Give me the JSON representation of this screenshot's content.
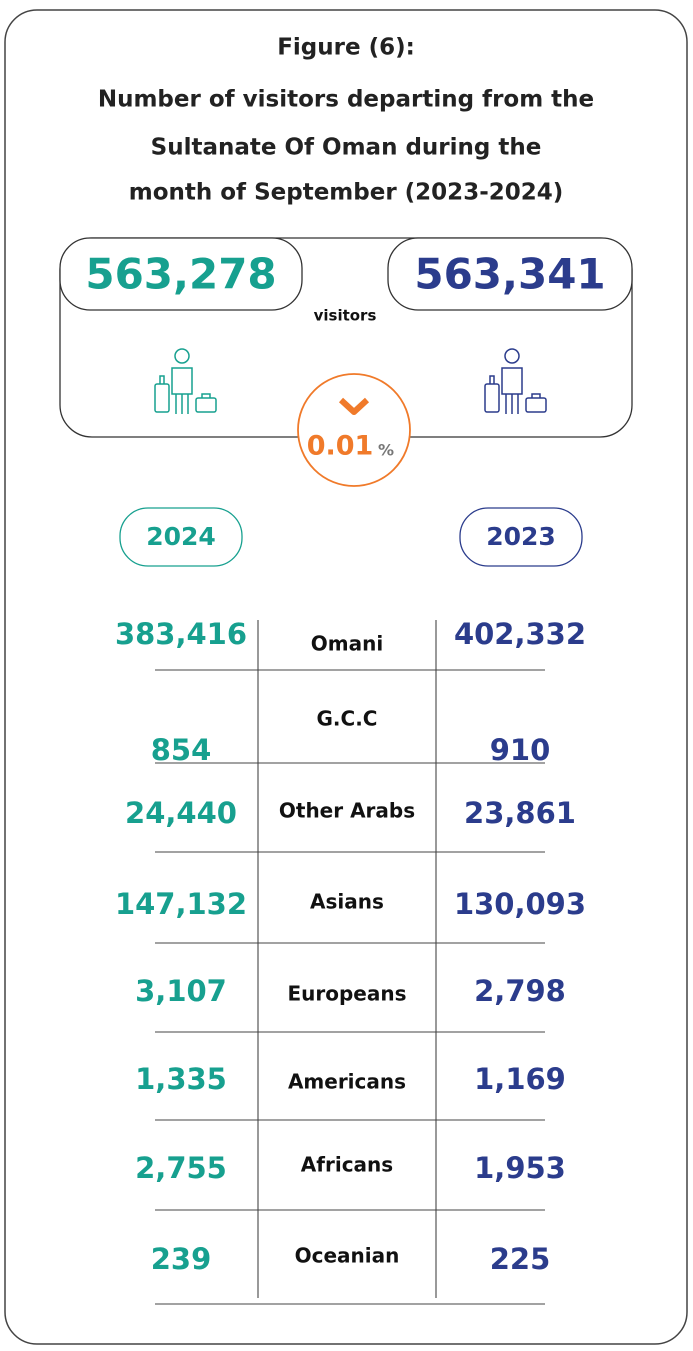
{
  "title": {
    "line1": "Figure (6):",
    "line2": "Number of visitors departing from the",
    "line3": "Sultanate Of Oman during the",
    "line4": "month of September (2023-2024)"
  },
  "summary": {
    "total_2024": "563,278",
    "total_2023": "563,341",
    "unit": "visitors",
    "change": "0.01",
    "change_unit": "%"
  },
  "years": {
    "left": "2024",
    "right": "2023"
  },
  "table": {
    "rows": [
      [
        "383,416",
        "Omani",
        "402,332"
      ],
      [
        "854",
        "G.C.C",
        "910"
      ],
      [
        "24,440",
        "Other Arabs",
        "23,861"
      ],
      [
        "147,132",
        "Asians",
        "130,093"
      ],
      [
        "3,107",
        "Europeans",
        "2,798"
      ],
      [
        "1,335",
        "Americans",
        "1,169"
      ],
      [
        "2,755",
        "Africans",
        "1,953"
      ],
      [
        "239",
        "Oceanian",
        "225"
      ]
    ]
  }
}
